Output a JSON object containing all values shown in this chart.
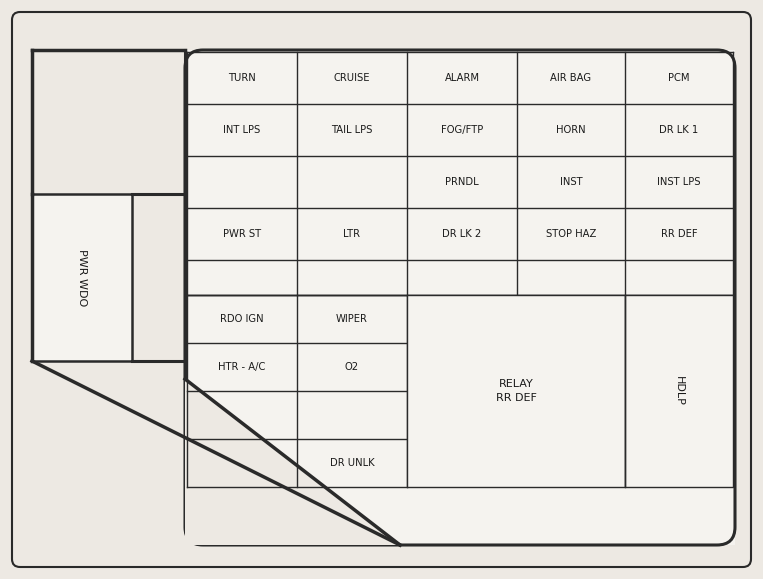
{
  "bg_color": "#ede9e3",
  "inner_bg": "#f5f3ef",
  "line_color": "#2a2a2a",
  "text_color": "#1a1a1a",
  "grid_rows": [
    [
      "TURN",
      "CRUISE",
      "ALARM",
      "AIR BAG",
      "PCM"
    ],
    [
      "INT LPS",
      "TAIL LPS",
      "FOG/FTP",
      "HORN",
      "DR LK 1"
    ],
    [
      "",
      "",
      "PRNDL",
      "INST",
      "INST LPS"
    ],
    [
      "PWR ST",
      "LTR",
      "DR LK 2",
      "STOP HAZ",
      "RR DEF"
    ],
    [
      "",
      "",
      "",
      "",
      ""
    ],
    [
      "RDO IGN",
      "WIPER",
      "",
      "",
      ""
    ],
    [
      "HTR - A/C",
      "O2",
      "",
      "",
      ""
    ],
    [
      "",
      "",
      "",
      "",
      ""
    ],
    [
      "",
      "DR UNLK",
      "",
      "",
      ""
    ]
  ],
  "pwr_wdo_label": "PWR WDO",
  "relay_label": "RELAY\nRR DEF",
  "hdlp_label": "HDLP"
}
